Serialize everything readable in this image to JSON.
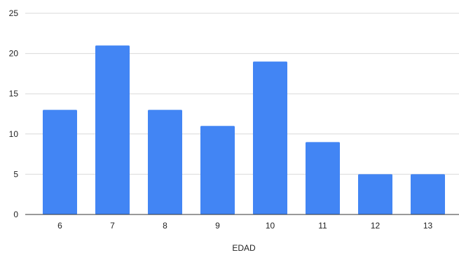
{
  "chart_data": {
    "type": "bar",
    "title": "",
    "xlabel": "EDAD",
    "ylabel": "",
    "categories": [
      "6",
      "7",
      "8",
      "9",
      "10",
      "11",
      "12",
      "13"
    ],
    "series": [
      {
        "values": [
          13,
          21,
          13,
          11,
          19,
          9,
          5,
          5
        ],
        "color": "#4285f4"
      }
    ],
    "ylim": [
      0,
      25
    ],
    "yticks": [
      0,
      5,
      10,
      15,
      20,
      25
    ],
    "grid": true,
    "legend": "none"
  }
}
